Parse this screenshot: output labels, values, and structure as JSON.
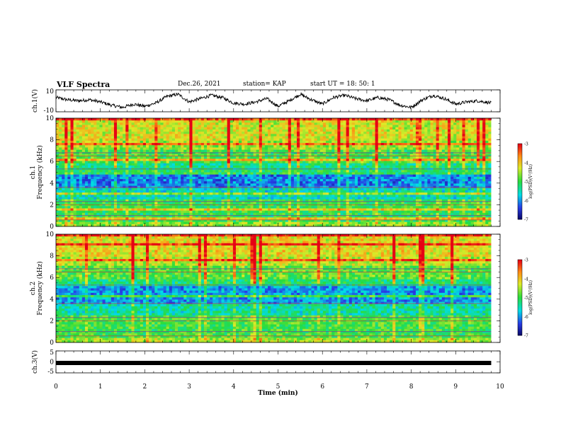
{
  "header": {
    "title": "VLF Spectra",
    "date": "Dec.26, 2021",
    "station": "station= KAP",
    "start": "start  UT =  18: 50: 1"
  },
  "chart_data": [
    {
      "type": "line",
      "id": "ch1",
      "ylabel": "ch.1(V)",
      "ylim": [
        -10,
        10
      ],
      "yticks": [
        "10",
        "-10"
      ],
      "description_note": "",
      "x": [
        0,
        0.25,
        0.5,
        0.75,
        1,
        1.25,
        1.5,
        1.75,
        2,
        2.25,
        2.5,
        2.75,
        3,
        3.25,
        3.5,
        3.75,
        4,
        4.25,
        4.5,
        4.75,
        5,
        5.25,
        5.5,
        5.75,
        6,
        6.25,
        6.5,
        6.75,
        7,
        7.25,
        7.5,
        7.75,
        8,
        8.25,
        8.5,
        8.75,
        9,
        9.25,
        9.5,
        9.8
      ],
      "y": [
        3,
        1,
        0,
        1,
        -1,
        -4,
        -6,
        -3,
        -5,
        -2,
        4,
        6,
        -1,
        2,
        5,
        3,
        -2,
        -3,
        -1,
        2,
        -5,
        0,
        6,
        1,
        -3,
        3,
        5,
        2,
        0,
        3,
        1,
        -4,
        -6,
        1,
        5,
        2,
        -3,
        -1,
        0,
        -2
      ]
    },
    {
      "type": "heatmap",
      "id": "ch1-spec",
      "ylabel": "ch.1",
      "ylabel2": "Frequency (kHz)",
      "ylim": [
        0,
        10
      ],
      "yticks": [
        "0",
        "2",
        "4",
        "6",
        "8",
        "10"
      ],
      "colorbar": {
        "label": "log(PSD)(V²/Hz)",
        "range": [
          -7,
          -3
        ],
        "ticks": [
          "-3",
          "-4",
          "-5",
          "-6",
          "-7"
        ]
      }
    },
    {
      "type": "heatmap",
      "id": "ch2-spec",
      "ylabel": "ch.2",
      "ylabel2": "Frequency (kHz)",
      "ylim": [
        0,
        10
      ],
      "yticks": [
        "0",
        "2",
        "4",
        "6",
        "8",
        "10"
      ],
      "colorbar": {
        "label": "log(PSD)(V²/Hz)",
        "range": [
          -7,
          -3
        ],
        "ticks": [
          "-3",
          "-4",
          "-5",
          "-6",
          "-7"
        ]
      }
    },
    {
      "type": "line",
      "id": "ch3",
      "ylabel": "ch.3(V)",
      "ylim": [
        -5,
        5
      ],
      "yticks": [
        "5",
        "0",
        "-5"
      ],
      "x": [
        0,
        9.8
      ],
      "y": [
        -0.5,
        -0.5
      ]
    }
  ],
  "xaxis": {
    "label": "Time  (min)",
    "xlim": [
      0,
      10
    ],
    "ticks": [
      "0",
      "1",
      "2",
      "3",
      "4",
      "5",
      "6",
      "7",
      "8",
      "9",
      "10"
    ]
  }
}
